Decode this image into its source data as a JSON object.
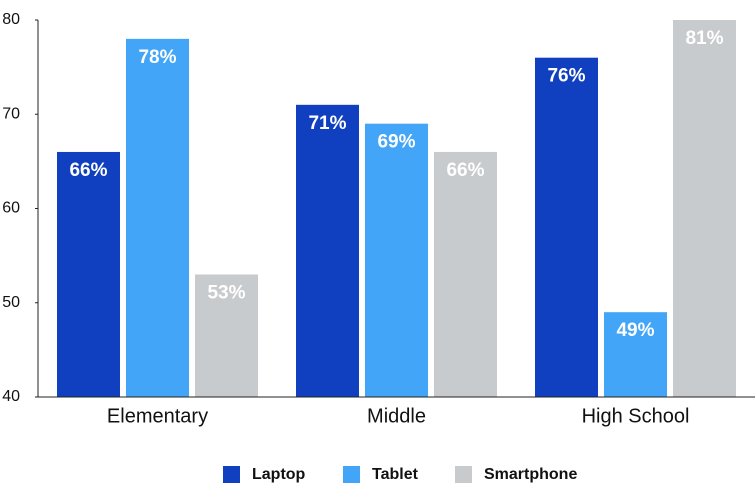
{
  "chart_data": {
    "type": "bar",
    "categories": [
      "Elementary",
      "Middle",
      "High School"
    ],
    "series": [
      {
        "name": "Laptop",
        "color": "#1040bf",
        "values": [
          66,
          71,
          76
        ],
        "value_labels": [
          "66%",
          "71%",
          "76%"
        ]
      },
      {
        "name": "Tablet",
        "color": "#42a5f7",
        "values": [
          78,
          69,
          49
        ],
        "value_labels": [
          "78%",
          "69%",
          "49%"
        ]
      },
      {
        "name": "Smartphone",
        "color": "#c8cbce",
        "values": [
          53,
          66,
          81
        ],
        "value_labels": [
          "53%",
          "66%",
          "81%"
        ]
      }
    ],
    "ylim": [
      40,
      80
    ],
    "yticks": [
      40,
      50,
      60,
      70,
      80
    ],
    "legend": "bottom"
  }
}
